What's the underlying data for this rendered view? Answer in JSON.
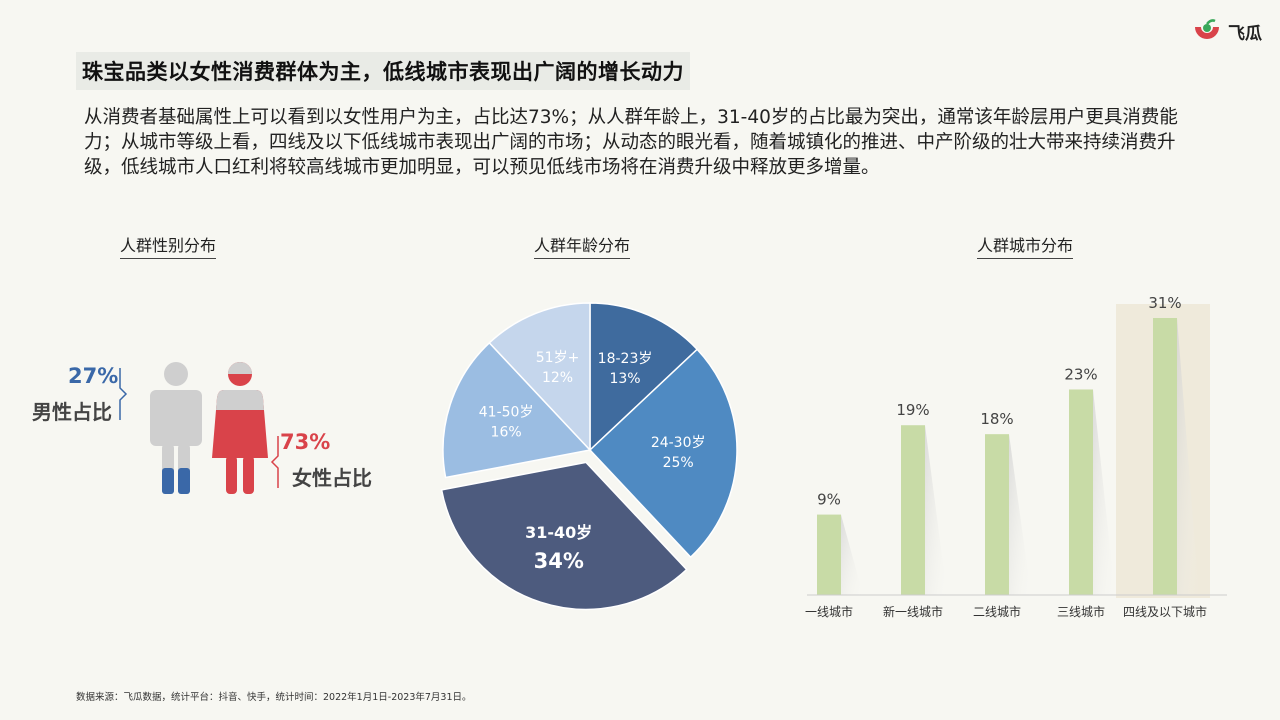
{
  "brand": {
    "name": "飞瓜"
  },
  "headline": "珠宝品类以女性消费群体为主，低线城市表现出广阔的增长动力",
  "intro": "从消费者基础属性上可以看到以女性用户为主，占比达73%；从人群年龄上，31-40岁的占比最为突出，通常该年龄层用户更具消费能力；从城市等级上看，四线及以下低线城市表现出广阔的市场；从动态的眼光看，随着城镇化的推进、中产阶级的壮大带来持续消费升级，低线城市人口红利将较高线城市更加明显，可以预见低线市场将在消费升级中释放更多增量。",
  "gender": {
    "title": "人群性别分布",
    "male_pct": "27%",
    "male_label": "男性占比",
    "female_pct": "73%",
    "female_label": "女性占比",
    "colors": {
      "male": "#3a68a8",
      "female": "#d9434a",
      "base": "#cfcfcf"
    }
  },
  "age": {
    "title": "人群年龄分布"
  },
  "city": {
    "title": "人群城市分布"
  },
  "source": "数据来源：飞瓜数据，统计平台：抖音、快手，统计时间：2022年1月1日-2023年7月31日。",
  "chart_data": [
    {
      "type": "pie",
      "title": "人群年龄分布",
      "categories": [
        "18-23岁",
        "24-30岁",
        "31-40岁",
        "41-50岁",
        "51岁+"
      ],
      "values": [
        13,
        25,
        34,
        16,
        12
      ],
      "labels": [
        "13%",
        "25%",
        "34%",
        "16%",
        "12%"
      ],
      "colors": [
        "#3f6b9e",
        "#4f8ac2",
        "#4d5b7e",
        "#9bbde2",
        "#c5d6ec"
      ],
      "exploded": "31-40岁"
    },
    {
      "type": "bar",
      "title": "人群城市分布",
      "categories": [
        "一线城市",
        "新一线城市",
        "二线城市",
        "三线城市",
        "四线及以下城市"
      ],
      "values": [
        9,
        19,
        18,
        23,
        31
      ],
      "labels": [
        "9%",
        "19%",
        "18%",
        "23%",
        "31%"
      ],
      "ylim": [
        0,
        31
      ],
      "bar_color": "#c8dba6",
      "highlight": "四线及以下城市",
      "highlight_color": "#efeadb"
    }
  ]
}
